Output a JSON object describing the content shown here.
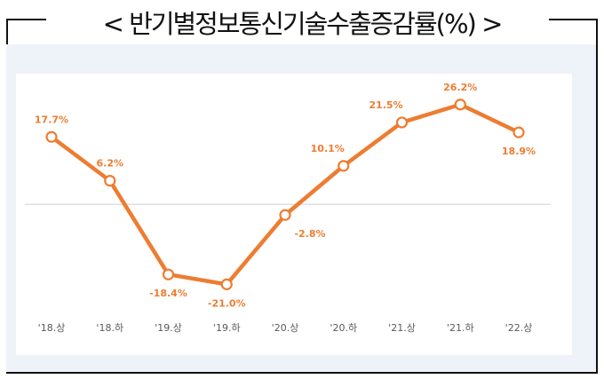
{
  "title": "< 반기별정보통신기술수출증감률(%) >",
  "chart_data": {
    "type": "line",
    "categories": [
      "'18.상",
      "'18.하",
      "'19.상",
      "'19.하",
      "'20.상",
      "'20.하",
      "'21.상",
      "'21.하",
      "'22.상"
    ],
    "series": [
      {
        "values": [
          17.7,
          6.2,
          -18.4,
          -21.0,
          -2.8,
          10.1,
          21.5,
          26.2,
          18.9
        ],
        "labels": [
          "17.7%",
          "6.2%",
          "-18.4%",
          "-21.0%",
          "-2.8%",
          "10.1%",
          "21.5%",
          "26.2%",
          "18.9%"
        ]
      }
    ],
    "ylim": [
      -30,
      35
    ],
    "zero_line": true,
    "colors": {
      "line": "#ed7d31",
      "label": "#ed7d31",
      "axis_text": "#595959",
      "zero_line": "#d9d9d9"
    }
  }
}
